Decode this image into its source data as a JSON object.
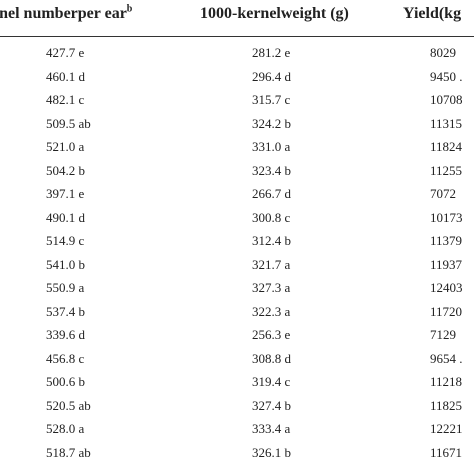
{
  "table": {
    "headers": {
      "kernel_number": "rnel numberper ear",
      "kernel_number_note": "b",
      "kernel_weight": "1000-kernelweight (g)",
      "yield": "Yield(kg"
    },
    "rows": [
      {
        "kernel_number": "427.7 e",
        "kernel_weight": "281.2 e",
        "yield": "8029"
      },
      {
        "kernel_number": "460.1 d",
        "kernel_weight": "296.4 d",
        "yield": "9450 ."
      },
      {
        "kernel_number": "482.1 c",
        "kernel_weight": "315.7 c",
        "yield": "10708"
      },
      {
        "kernel_number": "509.5 ab",
        "kernel_weight": "324.2 b",
        "yield": "11315"
      },
      {
        "kernel_number": "521.0 a",
        "kernel_weight": "331.0 a",
        "yield": "11824"
      },
      {
        "kernel_number": "504.2 b",
        "kernel_weight": "323.4 b",
        "yield": "11255"
      },
      {
        "kernel_number": "397.1 e",
        "kernel_weight": "266.7 d",
        "yield": "7072"
      },
      {
        "kernel_number": "490.1 d",
        "kernel_weight": "300.8 c",
        "yield": "10173"
      },
      {
        "kernel_number": "514.9 c",
        "kernel_weight": "312.4 b",
        "yield": "11379"
      },
      {
        "kernel_number": "541.0 b",
        "kernel_weight": "321.7 a",
        "yield": "11937"
      },
      {
        "kernel_number": "550.9 a",
        "kernel_weight": "327.3 a",
        "yield": "12403"
      },
      {
        "kernel_number": "537.4 b",
        "kernel_weight": "322.3 a",
        "yield": "11720"
      },
      {
        "kernel_number": "339.6 d",
        "kernel_weight": "256.3 e",
        "yield": "7129"
      },
      {
        "kernel_number": "456.8 c",
        "kernel_weight": "308.8 d",
        "yield": "9654 ."
      },
      {
        "kernel_number": "500.6 b",
        "kernel_weight": "319.4 c",
        "yield": "11218"
      },
      {
        "kernel_number": "520.5 ab",
        "kernel_weight": "327.4 b",
        "yield": "11825"
      },
      {
        "kernel_number": "528.0 a",
        "kernel_weight": "333.4 a",
        "yield": "12221"
      },
      {
        "kernel_number": "518.7 ab",
        "kernel_weight": "326.1 b",
        "yield": "11671"
      }
    ]
  }
}
